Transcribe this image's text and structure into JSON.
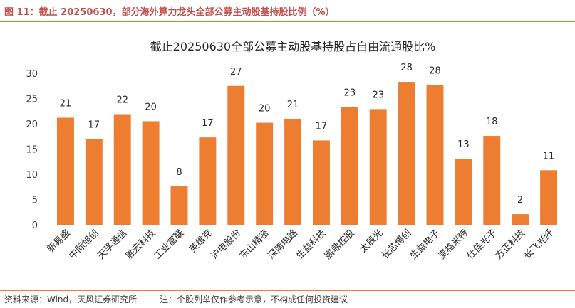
{
  "figure": {
    "title": "图 11：截止 20250630，部分海外算力龙头全部公募主动股基持股比例（%）",
    "source": "资料来源：Wind，天风证券研究所",
    "note": "注：个股列举仅作参考示意，不构成任何投资建议"
  },
  "colors": {
    "bar": "#ed7d31",
    "rule": "#ed7d31",
    "title": "#c0504d"
  },
  "chart_data": {
    "type": "bar",
    "title": "截止20250630全部公募主动股基持股占自由流通股比%",
    "xlabel": "",
    "ylabel": "",
    "ylim": [
      0,
      30
    ],
    "yticks": [
      0,
      5,
      10,
      15,
      20,
      25,
      30
    ],
    "grid": false,
    "categories": [
      "新易盛",
      "中际旭创",
      "天孚通信",
      "胜宏科技",
      "工业富联",
      "英维克",
      "沪电股份",
      "东山精密",
      "深南电路",
      "生益科技",
      "鹏鼎控股",
      "太辰光",
      "长芯博创",
      "生益电子",
      "麦格米特",
      "仕佳光子",
      "方正科技",
      "长飞光纤"
    ],
    "values": [
      21.2,
      17.0,
      21.9,
      20.5,
      7.6,
      17.3,
      27.5,
      20.2,
      21.0,
      16.7,
      23.3,
      22.9,
      28.3,
      27.7,
      13.1,
      17.6,
      2.1,
      10.8
    ],
    "data_labels": [
      "21",
      "17",
      "22",
      "20",
      "8",
      "17",
      "27",
      "20",
      "21",
      "17",
      "23",
      "23",
      "28",
      "28",
      "13",
      "18",
      "2",
      "11"
    ]
  }
}
